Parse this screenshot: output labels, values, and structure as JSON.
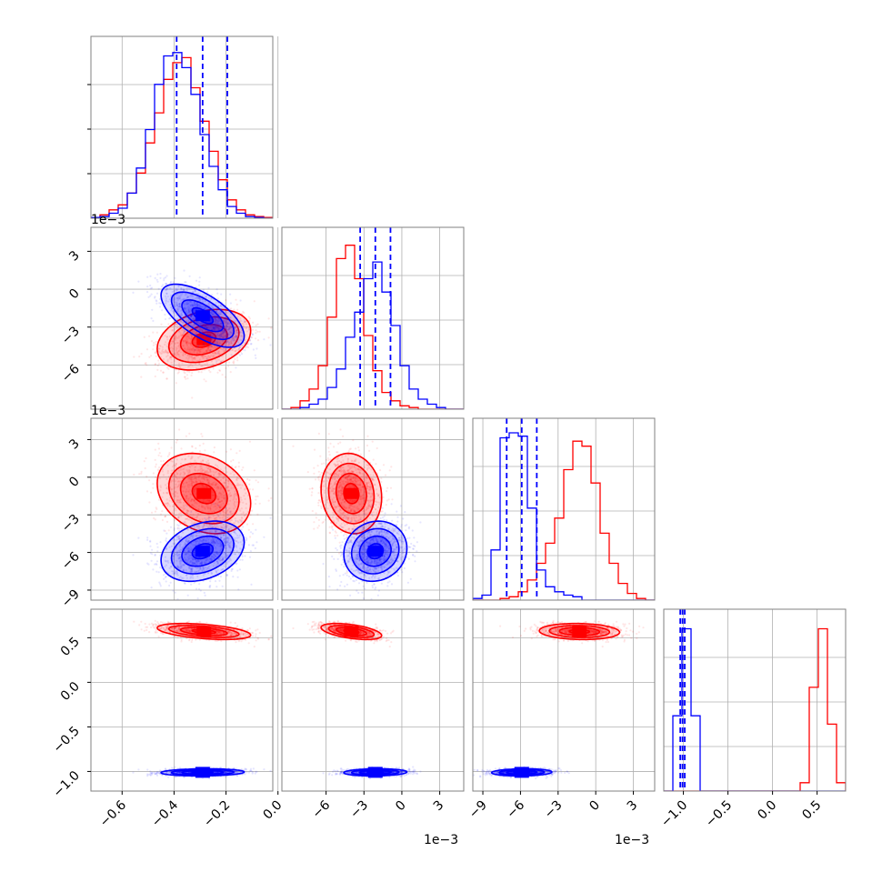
{
  "chart_data": {
    "type": "corner",
    "grid": true,
    "colors": {
      "red": "#ff0000",
      "blue": "#0000ff"
    },
    "x_axis_offset_labels": [
      "1e−3",
      "1e−3"
    ],
    "y_axis_offset_labels": [
      "1e−3",
      "1e−3"
    ],
    "parameters": [
      {
        "range": [
          -0.72,
          -0.02
        ],
        "ticks": [
          -0.6,
          -0.4,
          -0.2,
          0.0
        ],
        "tick_labels": [
          "−0.6",
          "−0.4",
          "−0.2",
          "0.0"
        ]
      },
      {
        "range": [
          -9.5,
          4.9
        ],
        "ticks": [
          -6,
          -3,
          0,
          3
        ],
        "tick_labels": [
          "−6",
          "−3",
          "0",
          "3"
        ]
      },
      {
        "range": [
          -9.8,
          4.7
        ],
        "ticks": [
          -9,
          -6,
          -3,
          0,
          3
        ],
        "tick_labels": [
          "−9",
          "−6",
          "−3",
          "0",
          "3"
        ]
      },
      {
        "range": [
          -1.22,
          0.82
        ],
        "ticks": [
          -1.0,
          -0.5,
          0.0,
          0.5
        ],
        "tick_labels": [
          "−1.0",
          "−0.5",
          "0.0",
          "0.5"
        ]
      }
    ],
    "series": [
      {
        "color": "red",
        "means": [
          -0.285,
          -4.0,
          -1.3,
          0.57
        ],
        "stds": [
          0.09,
          1.2,
          1.6,
          0.045
        ],
        "correlations": {
          "0-1": 0.3,
          "0-2": -0.25,
          "0-3": -0.45,
          "1-2": -0.1,
          "1-3": -0.5,
          "2-3": -0.1
        }
      },
      {
        "color": "blue",
        "means": [
          -0.29,
          -2.1,
          -5.9,
          -1.01
        ],
        "stds": [
          0.08,
          1.25,
          1.2,
          0.02
        ],
        "correlations": {
          "0-1": -0.65,
          "0-2": 0.3,
          "0-3": 0.1,
          "1-2": 0.1,
          "1-3": 0.1,
          "2-3": 0.1
        }
      }
    ],
    "quantile_lines": {
      "color": "blue",
      "values": [
        [
          -0.39,
          -0.29,
          -0.195
        ],
        [
          -3.3,
          -2.1,
          -0.9
        ],
        [
          -7.1,
          -5.9,
          -4.7
        ],
        [
          -1.035,
          -1.01,
          -0.985
        ]
      ]
    },
    "histograms": [
      {
        "bin_edges": [
          -0.72,
          -0.685,
          -0.65,
          -0.615,
          -0.58,
          -0.545,
          -0.51,
          -0.475,
          -0.44,
          -0.405,
          -0.37,
          -0.335,
          -0.3,
          -0.265,
          -0.23,
          -0.195,
          -0.16,
          -0.125,
          -0.09,
          -0.055,
          -0.02
        ],
        "red": [
          0.005,
          0.02,
          0.05,
          0.08,
          0.15,
          0.27,
          0.45,
          0.63,
          0.83,
          0.93,
          0.96,
          0.78,
          0.58,
          0.4,
          0.23,
          0.11,
          0.05,
          0.02,
          0.01,
          0.005
        ],
        "blue": [
          0.005,
          0.01,
          0.03,
          0.06,
          0.15,
          0.3,
          0.53,
          0.8,
          0.97,
          0.99,
          0.9,
          0.74,
          0.5,
          0.31,
          0.17,
          0.07,
          0.03,
          0.01,
          0.005,
          0.0
        ]
      },
      {
        "bin_edges": [
          -9.5,
          -8.78,
          -8.06,
          -7.34,
          -6.62,
          -5.9,
          -5.18,
          -4.46,
          -3.74,
          -3.02,
          -2.3,
          -1.58,
          -0.86,
          -0.14,
          0.58,
          1.3,
          2.02,
          2.74,
          3.46,
          4.18,
          4.9
        ],
        "red": [
          0.0,
          0.01,
          0.05,
          0.12,
          0.26,
          0.55,
          0.9,
          0.98,
          0.78,
          0.44,
          0.23,
          0.1,
          0.05,
          0.02,
          0.01,
          0.0,
          0.0,
          0.0,
          0.0,
          0.0
        ],
        "blue": [
          0.0,
          0.0,
          0.01,
          0.03,
          0.06,
          0.13,
          0.24,
          0.43,
          0.58,
          0.78,
          0.88,
          0.7,
          0.5,
          0.26,
          0.12,
          0.06,
          0.03,
          0.01,
          0.0,
          0.0
        ]
      },
      {
        "bin_edges": [
          -9.8,
          -9.075,
          -8.35,
          -7.625,
          -6.9,
          -6.175,
          -5.45,
          -4.725,
          -4.0,
          -3.275,
          -2.55,
          -1.825,
          -1.1,
          -0.375,
          0.35,
          1.075,
          1.8,
          2.525,
          3.25,
          3.975,
          4.7
        ],
        "red": [
          0.0,
          0.0,
          0.0,
          0.01,
          0.02,
          0.05,
          0.12,
          0.22,
          0.34,
          0.49,
          0.78,
          0.95,
          0.92,
          0.7,
          0.4,
          0.22,
          0.1,
          0.04,
          0.01,
          0.0
        ],
        "blue": [
          0.01,
          0.03,
          0.3,
          0.97,
          1.0,
          0.98,
          0.55,
          0.18,
          0.08,
          0.05,
          0.03,
          0.02,
          0.0,
          0.0,
          0.0,
          0.0,
          0.0,
          0.0,
          0.0,
          0.0
        ]
      },
      {
        "bin_edges": [
          -1.22,
          -1.118,
          -1.016,
          -0.914,
          -0.812,
          -0.71,
          -0.608,
          -0.506,
          -0.404,
          -0.302,
          -0.2,
          -0.098,
          0.004,
          0.106,
          0.208,
          0.31,
          0.412,
          0.514,
          0.616,
          0.718,
          0.82
        ],
        "red": [
          0.0,
          0.0,
          0.0,
          0.0,
          0.0,
          0.0,
          0.0,
          0.0,
          0.0,
          0.0,
          0.0,
          0.0,
          0.0,
          0.0,
          0.0,
          0.05,
          0.62,
          0.97,
          0.4,
          0.05
        ],
        "blue": [
          0.0,
          0.45,
          0.97,
          0.45,
          0.0,
          0.0,
          0.0,
          0.0,
          0.0,
          0.0,
          0.0,
          0.0,
          0.0,
          0.0,
          0.0,
          0.0,
          0.0,
          0.0,
          0.0,
          0.0
        ]
      }
    ]
  }
}
